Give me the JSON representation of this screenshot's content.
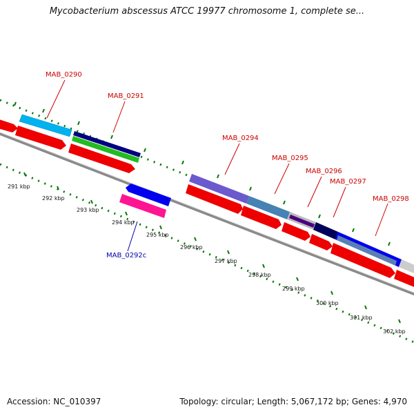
{
  "header": {
    "title": "Mycobacterium abscessus ATCC 19977 chromosome 1, complete se..."
  },
  "footer": {
    "accession": "Accession: NC_010397",
    "stats": "Topology: circular; Length: 5,067,172 bp; Genes: 4,970"
  },
  "gene_labels": {
    "mab_0290": "MAB_0290",
    "mab_0291": "MAB_0291",
    "mab_0292c": "MAB_0292c",
    "mab_0294": "MAB_0294",
    "mab_0295": "MAB_0295",
    "mab_0296": "MAB_0296",
    "mab_0297": "MAB_0297",
    "mab_0298": "MAB_0298"
  },
  "scale_labels": {
    "k291": "291 kbp",
    "k292": "292 kbp",
    "k293": "293 kbp",
    "k294": "294 kbp",
    "k295": "295 kbp",
    "k296": "296 kbp",
    "k297": "297 kbp",
    "k298": "298 kbp",
    "k299": "299 kbp",
    "k300": "300 kbp",
    "k301": "301 kbp",
    "k302": "302 kbp"
  },
  "colors": {
    "backbone": "#888888",
    "gene_forward": "#ff0000",
    "gene_reverse": "#0000ff",
    "label_red": "#cc0000",
    "label_blue": "#0000aa",
    "tick_green": "#007700"
  }
}
